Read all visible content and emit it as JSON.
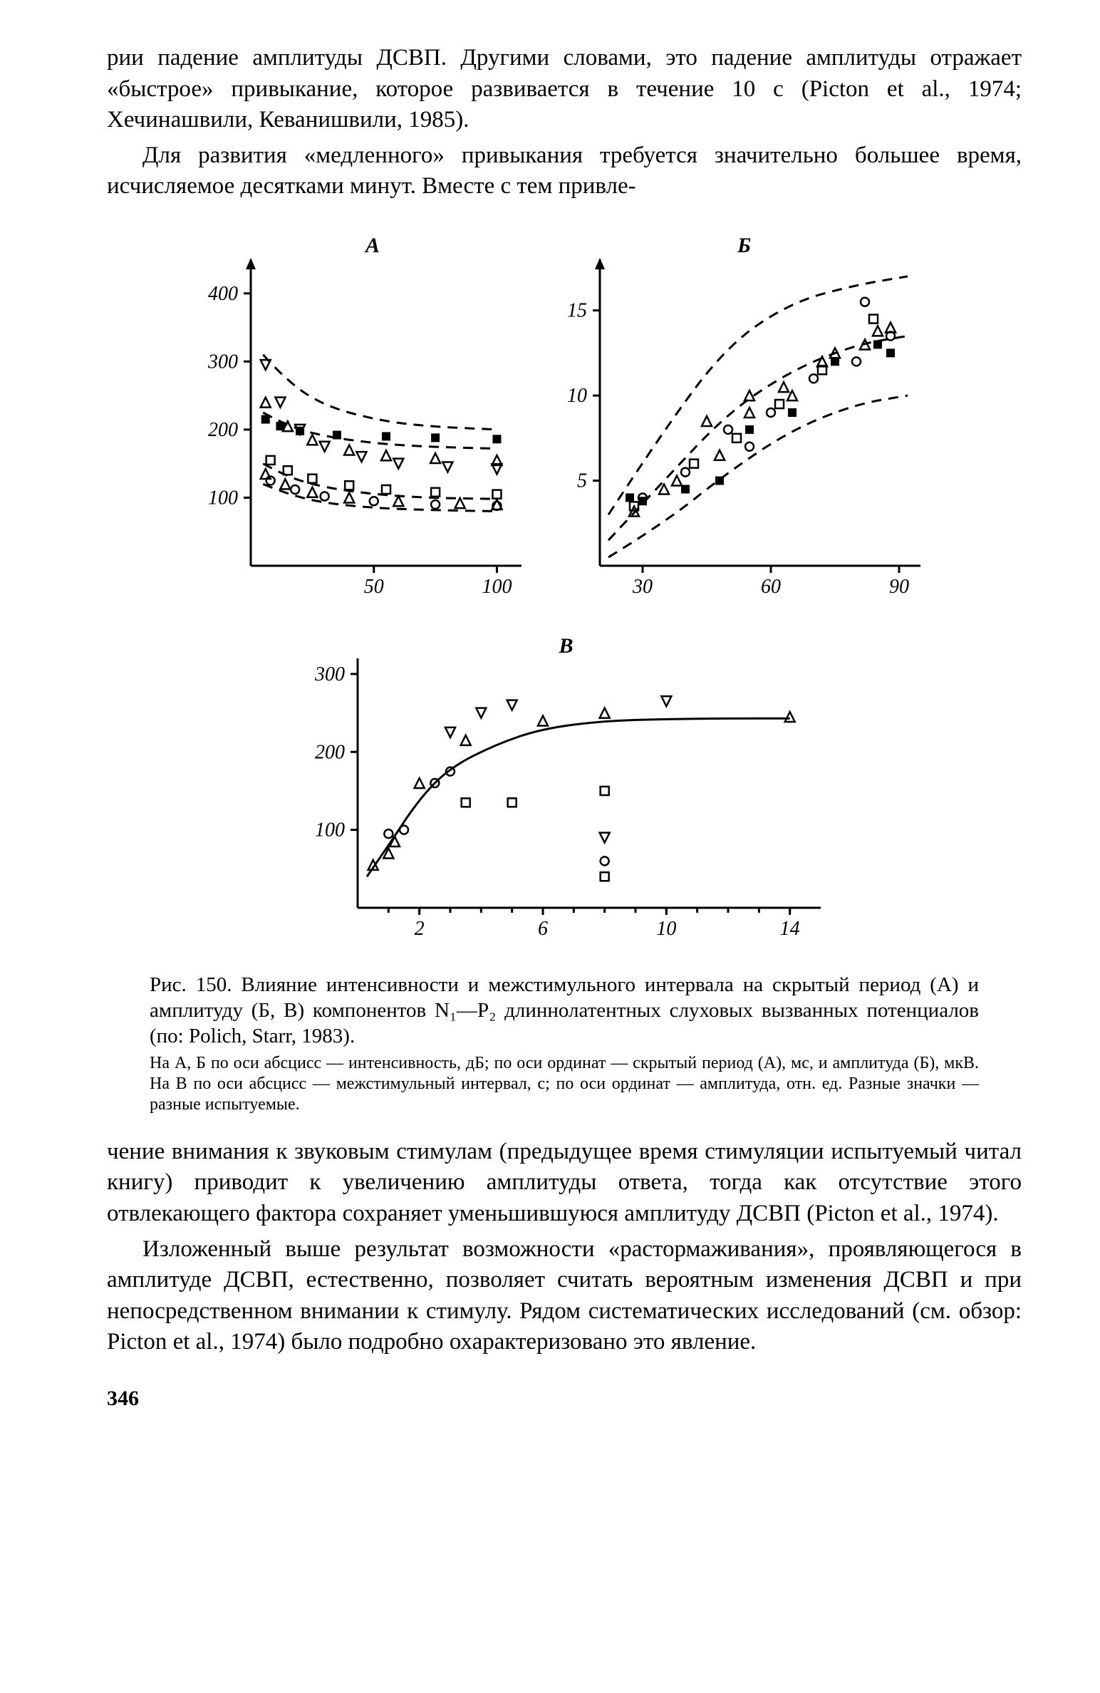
{
  "para1": "рии падение амплитуды ДСВП. Другими словами, это падение амплитуды отражает «быстрое» привыкание, которое развивается в течение 10 с (Picton et al., 1974; Хечинашвили, Кеванишвили, 1985).",
  "para2": "Для развития «медленного» привыкания требуется значительно большее время, исчисляемое десятками минут. Вместе с тем привле-",
  "para3": "чение внимания к звуковым стимулам (предыдущее время стимуляции испытуемый читал книгу) приводит к увеличению амплитуды ответа, тогда как отсутствие этого отвлекающего фактора сохраняет уменьшившуюся амплитуду ДСВП (Picton et al., 1974).",
  "para4": "Изложенный выше результат возможности «растормаживания», проявляющегося в амплитуде ДСВП, естественно, позволяет считать вероятным изменения ДСВП и при непосредственном внимании к стимулу. Рядом систематических исследований (см. обзор: Picton et al., 1974) было подробно охарактеризовано это явление.",
  "caption_main": "Рис. 150. Влияние интенсивности и межстимульного интервала на скрытый период (А) и амплитуду (Б, В) компонентов N₁—P₂ длиннолатентных слуховых вызванных потенциалов (по: Polich, Starr, 1983).",
  "caption_sub": "На А, Б по оси абсцисс — интенсивность, дБ; по оси ординат — скрытый период (А), мс, и амплитуда (Б), мкВ. На В по оси абсцисс — межстимульный интервал, с; по оси ординат — амплитуда, отн. ед. Разные значки — разные испытуемые.",
  "page_number": "346",
  "chartA": {
    "type": "scatter",
    "label": "А",
    "xlim": [
      0,
      110
    ],
    "ylim": [
      0,
      450
    ],
    "xticks": [
      50,
      100
    ],
    "yticks": [
      100,
      200,
      300,
      400
    ],
    "bg": "#ffffff",
    "axis_color": "#000000",
    "dash_curves": [
      [
        [
          5,
          310
        ],
        [
          15,
          270
        ],
        [
          30,
          235
        ],
        [
          50,
          215
        ],
        [
          70,
          205
        ],
        [
          100,
          200
        ]
      ],
      [
        [
          5,
          225
        ],
        [
          15,
          205
        ],
        [
          30,
          190
        ],
        [
          50,
          180
        ],
        [
          70,
          175
        ],
        [
          100,
          172
        ]
      ],
      [
        [
          5,
          150
        ],
        [
          15,
          130
        ],
        [
          30,
          115
        ],
        [
          50,
          105
        ],
        [
          70,
          100
        ],
        [
          100,
          98
        ]
      ],
      [
        [
          5,
          120
        ],
        [
          15,
          105
        ],
        [
          30,
          92
        ],
        [
          50,
          85
        ],
        [
          70,
          82
        ],
        [
          100,
          80
        ]
      ]
    ],
    "points": {
      "triangle_down": [
        [
          6,
          295
        ],
        [
          12,
          240
        ],
        [
          20,
          200
        ],
        [
          30,
          175
        ],
        [
          45,
          160
        ],
        [
          60,
          150
        ],
        [
          80,
          145
        ],
        [
          100,
          142
        ]
      ],
      "triangle_up": [
        [
          6,
          240
        ],
        [
          15,
          205
        ],
        [
          25,
          185
        ],
        [
          40,
          170
        ],
        [
          55,
          162
        ],
        [
          75,
          158
        ],
        [
          100,
          155
        ]
      ],
      "square_fill": [
        [
          6,
          215
        ],
        [
          12,
          205
        ],
        [
          20,
          198
        ],
        [
          35,
          192
        ],
        [
          55,
          190
        ],
        [
          75,
          188
        ],
        [
          100,
          186
        ]
      ],
      "square_open": [
        [
          8,
          155
        ],
        [
          15,
          140
        ],
        [
          25,
          128
        ],
        [
          40,
          118
        ],
        [
          55,
          112
        ],
        [
          75,
          108
        ],
        [
          100,
          105
        ]
      ],
      "triangle_open": [
        [
          6,
          135
        ],
        [
          14,
          120
        ],
        [
          25,
          108
        ],
        [
          40,
          100
        ],
        [
          60,
          95
        ],
        [
          85,
          92
        ],
        [
          100,
          90
        ]
      ],
      "circle_open": [
        [
          8,
          125
        ],
        [
          18,
          112
        ],
        [
          30,
          102
        ],
        [
          50,
          95
        ],
        [
          75,
          90
        ],
        [
          100,
          88
        ]
      ]
    }
  },
  "chartB": {
    "type": "scatter",
    "label": "Б",
    "xlim": [
      20,
      95
    ],
    "ylim": [
      0,
      18
    ],
    "xticks": [
      30,
      60,
      90
    ],
    "yticks": [
      5,
      10,
      15
    ],
    "bg": "#ffffff",
    "axis_color": "#000000",
    "dash_curves": [
      [
        [
          22,
          3
        ],
        [
          35,
          8
        ],
        [
          50,
          13
        ],
        [
          65,
          15.5
        ],
        [
          80,
          16.5
        ],
        [
          92,
          17
        ]
      ],
      [
        [
          22,
          1.5
        ],
        [
          35,
          5
        ],
        [
          50,
          9
        ],
        [
          65,
          11.5
        ],
        [
          80,
          13
        ],
        [
          92,
          13.5
        ]
      ],
      [
        [
          22,
          0.5
        ],
        [
          35,
          2.5
        ],
        [
          50,
          5.5
        ],
        [
          65,
          8
        ],
        [
          80,
          9.5
        ],
        [
          92,
          10
        ]
      ]
    ],
    "points": {
      "circle_open": [
        [
          30,
          4
        ],
        [
          40,
          5.5
        ],
        [
          50,
          8
        ],
        [
          55,
          7
        ],
        [
          60,
          9
        ],
        [
          70,
          11
        ],
        [
          80,
          12
        ],
        [
          82,
          15.5
        ],
        [
          88,
          13.5
        ]
      ],
      "square_open": [
        [
          28,
          3.5
        ],
        [
          42,
          6
        ],
        [
          52,
          7.5
        ],
        [
          62,
          9.5
        ],
        [
          72,
          11.5
        ],
        [
          84,
          14.5
        ]
      ],
      "square_fill": [
        [
          27,
          4
        ],
        [
          30,
          3.8
        ],
        [
          40,
          4.5
        ],
        [
          48,
          5
        ],
        [
          55,
          8
        ],
        [
          65,
          9
        ],
        [
          75,
          12
        ],
        [
          85,
          13
        ],
        [
          88,
          12.5
        ]
      ],
      "triangle_up": [
        [
          28,
          3.2
        ],
        [
          38,
          5
        ],
        [
          48,
          6.5
        ],
        [
          55,
          10
        ],
        [
          65,
          10
        ],
        [
          75,
          12.5
        ],
        [
          85,
          13.8
        ],
        [
          88,
          14
        ]
      ],
      "triangle_open": [
        [
          35,
          4.5
        ],
        [
          45,
          8.5
        ],
        [
          55,
          9
        ],
        [
          63,
          10.5
        ],
        [
          72,
          12
        ],
        [
          82,
          13
        ]
      ]
    }
  },
  "chartV": {
    "type": "scatter",
    "label": "В",
    "xlim": [
      0,
      15
    ],
    "ylim": [
      0,
      320
    ],
    "xticks": [
      2,
      6,
      10,
      14
    ],
    "yticks": [
      100,
      200,
      300
    ],
    "bg": "#ffffff",
    "axis_color": "#000000",
    "curve": [
      [
        0.3,
        40
      ],
      [
        1,
        80
      ],
      [
        2,
        140
      ],
      [
        3,
        180
      ],
      [
        4.5,
        210
      ],
      [
        6,
        230
      ],
      [
        8,
        240
      ],
      [
        10,
        242
      ],
      [
        12,
        243
      ],
      [
        14,
        243
      ]
    ],
    "points": {
      "triangle_up": [
        [
          0.5,
          55
        ],
        [
          1,
          70
        ],
        [
          1.2,
          85
        ],
        [
          2,
          160
        ],
        [
          3.5,
          215
        ],
        [
          6,
          240
        ],
        [
          8,
          250
        ],
        [
          14,
          245
        ]
      ],
      "triangle_down": [
        [
          3,
          225
        ],
        [
          4,
          250
        ],
        [
          5,
          260
        ],
        [
          8,
          90
        ],
        [
          10,
          265
        ]
      ],
      "circle_open": [
        [
          1,
          95
        ],
        [
          1.5,
          100
        ],
        [
          2.5,
          160
        ],
        [
          3,
          175
        ],
        [
          8,
          60
        ]
      ],
      "square_open": [
        [
          3.5,
          135
        ],
        [
          5,
          135
        ],
        [
          8,
          150
        ],
        [
          8,
          40
        ]
      ]
    }
  }
}
